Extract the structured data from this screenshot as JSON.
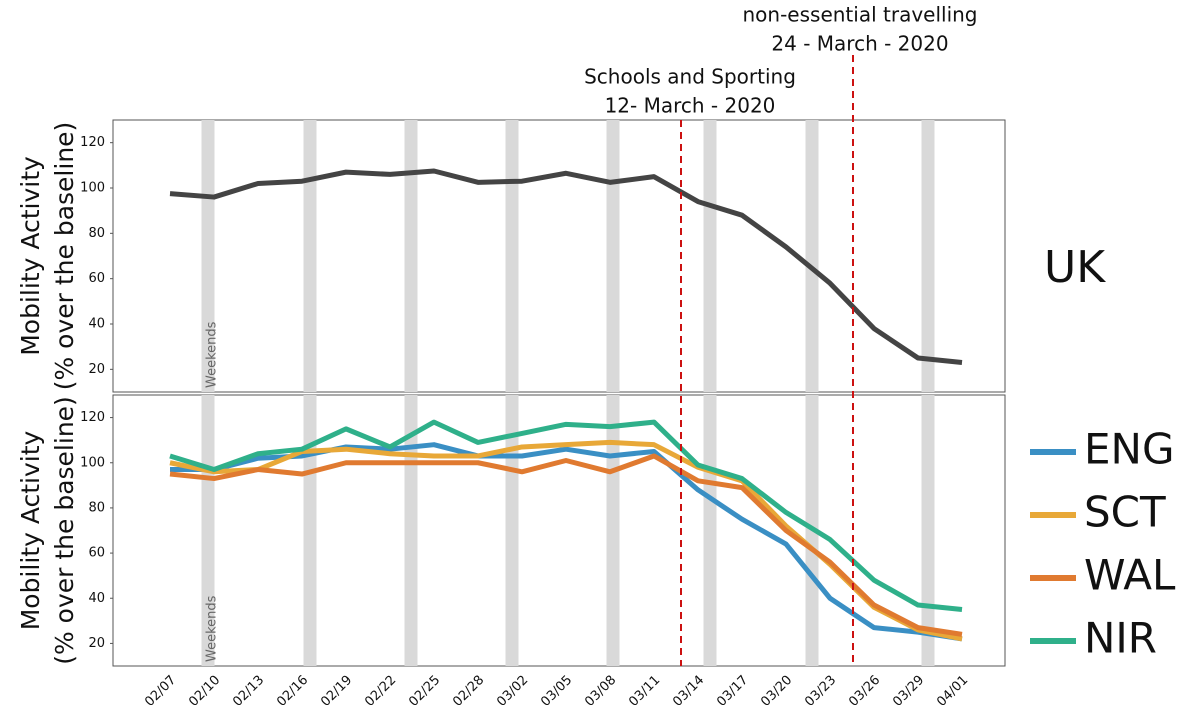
{
  "chart_data": [
    {
      "type": "line",
      "ylabel": [
        "Mobility Activity",
        "(% over the baseline)"
      ],
      "ylim": [
        10,
        130
      ],
      "yticks": [
        20,
        40,
        60,
        80,
        100,
        120
      ],
      "weekends_label": "Weekends",
      "annotations": [
        [
          "Schools and Sporting",
          "12- March - 2020"
        ],
        [
          "non-essential travelling",
          "24 - March - 2020"
        ]
      ],
      "series": [
        {
          "name": "UK",
          "color": "#444444",
          "values": [
            97.5,
            96,
            102,
            103,
            107,
            106,
            107.5,
            102.5,
            103,
            106.5,
            102.5,
            105,
            94,
            88,
            74,
            58,
            38,
            25,
            23
          ]
        }
      ]
    },
    {
      "type": "line",
      "ylabel": [
        "Mobility Activity",
        "(% over the baseline)"
      ],
      "ylim": [
        10,
        130
      ],
      "yticks": [
        20,
        40,
        60,
        80,
        100,
        120
      ],
      "weekends_label": "Weekends",
      "categories": [
        "02/07",
        "02/10",
        "02/13",
        "02/16",
        "02/19",
        "02/22",
        "02/25",
        "02/28",
        "03/02",
        "03/05",
        "03/08",
        "03/11",
        "03/14",
        "03/17",
        "03/20",
        "03/23",
        "03/26",
        "03/29",
        "04/01"
      ],
      "series": [
        {
          "name": "ENG",
          "color": "#3a8fc4",
          "values": [
            97,
            97,
            102,
            103,
            107,
            106,
            108,
            103,
            103,
            106,
            103,
            105,
            88,
            75,
            64,
            40,
            27,
            25,
            22
          ]
        },
        {
          "name": "SCT",
          "color": "#e8a838",
          "values": [
            100,
            96,
            97,
            105,
            106,
            104,
            103,
            103,
            107,
            108,
            109,
            108,
            98,
            92,
            72,
            55,
            36,
            26,
            22
          ]
        },
        {
          "name": "WAL",
          "color": "#e07a30",
          "values": [
            95,
            93,
            97,
            95,
            100,
            100,
            100,
            100,
            96,
            101,
            96,
            103,
            92,
            89,
            70,
            56,
            37,
            27,
            24
          ]
        },
        {
          "name": "NIR",
          "color": "#2fb08a",
          "values": [
            103,
            97,
            104,
            106,
            115,
            107,
            118,
            109,
            113,
            117,
            116,
            118,
            99,
            93,
            78,
            66,
            48,
            37,
            35
          ]
        }
      ]
    }
  ]
}
